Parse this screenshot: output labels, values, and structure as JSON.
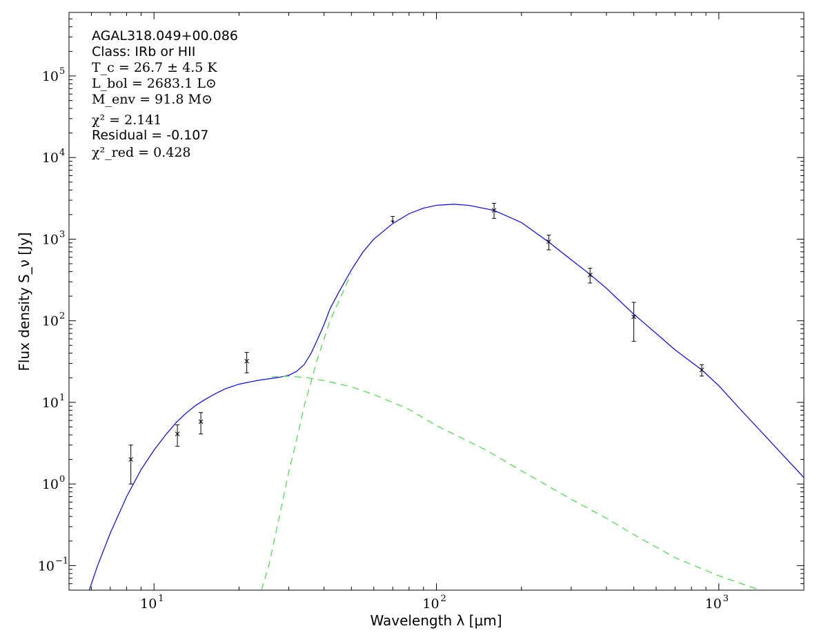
{
  "chart_data": {
    "type": "line",
    "xlabel": "Wavelength λ [μm]",
    "ylabel": "Flux density S_ν [Jy]",
    "xscale": "log",
    "yscale": "log",
    "xlim": [
      5,
      2000
    ],
    "ylim": [
      0.05,
      600000
    ],
    "x_ticks": [
      {
        "base": "10",
        "exp": "1",
        "value": 10
      },
      {
        "base": "10",
        "exp": "2",
        "value": 100
      },
      {
        "base": "10",
        "exp": "3",
        "value": 1000
      }
    ],
    "y_ticks": [
      {
        "base": "10",
        "exp": "−1",
        "value": 0.1
      },
      {
        "base": "10",
        "exp": "0",
        "value": 1
      },
      {
        "base": "10",
        "exp": "1",
        "value": 10
      },
      {
        "base": "10",
        "exp": "2",
        "value": 100
      },
      {
        "base": "10",
        "exp": "3",
        "value": 1000
      },
      {
        "base": "10",
        "exp": "4",
        "value": 10000
      },
      {
        "base": "10",
        "exp": "5",
        "value": 100000
      }
    ],
    "annotations": {
      "source": "AGAL318.049+00.086",
      "class": "Class: IRb or HII",
      "tc": "T_c = 26.7 ± 4.5 K",
      "lbol": "L_bol = 2683.1 L⊙",
      "menv": "M_env = 91.8 M⊙",
      "chi2": "χ² = 2.141",
      "residual": "Residual = -0.107",
      "chi2red": "χ²_red = 0.428"
    },
    "points": [
      {
        "x": 8.28,
        "y": 2.0,
        "ylo": 1.0,
        "yhi": 3.0
      },
      {
        "x": 12.1,
        "y": 4.1,
        "ylo": 2.9,
        "yhi": 5.3
      },
      {
        "x": 14.65,
        "y": 5.8,
        "ylo": 4.1,
        "yhi": 7.5
      },
      {
        "x": 21.3,
        "y": 32.0,
        "ylo": 23.0,
        "yhi": 41.0
      },
      {
        "x": 160,
        "y": 2250,
        "ylo": 1800,
        "yhi": 2750
      },
      {
        "x": 250,
        "y": 930,
        "ylo": 740,
        "yhi": 1120
      },
      {
        "x": 350,
        "y": 365,
        "ylo": 290,
        "yhi": 440
      },
      {
        "x": 500,
        "y": 112,
        "ylo": 56,
        "yhi": 168
      },
      {
        "x": 870,
        "y": 25,
        "ylo": 21,
        "yhi": 29
      }
    ],
    "upper_limits": [
      {
        "x": 70,
        "y": 1900
      }
    ],
    "series": [
      {
        "style": "solid",
        "color": "#0000ff",
        "points": [
          [
            5.9,
            0.05
          ],
          [
            6.3,
            0.098
          ],
          [
            7.0,
            0.25
          ],
          [
            8.0,
            0.7
          ],
          [
            9.0,
            1.5
          ],
          [
            10.0,
            2.6
          ],
          [
            11.0,
            4.0
          ],
          [
            12.0,
            5.7
          ],
          [
            13.0,
            7.4
          ],
          [
            14.0,
            9.1
          ],
          [
            15.0,
            10.6
          ],
          [
            16.5,
            12.8
          ],
          [
            18.0,
            14.8
          ],
          [
            20.0,
            16.7
          ],
          [
            22.0,
            17.9
          ],
          [
            24.0,
            18.9
          ],
          [
            26.0,
            19.6
          ],
          [
            28.0,
            20.4
          ],
          [
            30.0,
            21.5
          ],
          [
            32.0,
            24.0
          ],
          [
            34.0,
            29.0
          ],
          [
            36.0,
            40.0
          ],
          [
            38.0,
            60.0
          ],
          [
            40.0,
            90.0
          ],
          [
            42.0,
            140.0
          ],
          [
            45.0,
            220.0
          ],
          [
            50.0,
            420.0
          ],
          [
            55.0,
            700.0
          ],
          [
            60.0,
            1000.0
          ],
          [
            70.0,
            1550.0
          ],
          [
            80.0,
            2050.0
          ],
          [
            90.0,
            2400.0
          ],
          [
            100.0,
            2600.0
          ],
          [
            115.0,
            2680.0
          ],
          [
            130.0,
            2600.0
          ],
          [
            160.0,
            2250.0
          ],
          [
            200.0,
            1600.0
          ],
          [
            250.0,
            920.0
          ],
          [
            300.0,
            560.0
          ],
          [
            350.0,
            370.0
          ],
          [
            400.0,
            250.0
          ],
          [
            500.0,
            120.0
          ],
          [
            600.0,
            70.0
          ],
          [
            700.0,
            44.0
          ],
          [
            870.0,
            25.0
          ],
          [
            1000.0,
            16.0
          ],
          [
            1200.0,
            8.0
          ],
          [
            1500.0,
            3.5
          ],
          [
            2000.0,
            1.2
          ]
        ]
      },
      {
        "style": "dashed",
        "color": "#44dd44",
        "points": [
          [
            24.0,
            0.05
          ],
          [
            25.5,
            0.1
          ],
          [
            27.0,
            0.25
          ],
          [
            28.5,
            0.6
          ],
          [
            30.0,
            1.4
          ],
          [
            32.0,
            3.5
          ],
          [
            34.0,
            9.0
          ],
          [
            36.0,
            18.0
          ],
          [
            38.0,
            35.0
          ],
          [
            40.0,
            60.0
          ],
          [
            42.0,
            100.0
          ],
          [
            45.0,
            170.0
          ],
          [
            50.0,
            380.0
          ]
        ]
      },
      {
        "style": "dashed",
        "color": "#44dd44",
        "points": [
          [
            26.0,
            20.5
          ],
          [
            30.0,
            21.0
          ],
          [
            35.0,
            20.0
          ],
          [
            40.0,
            18.5
          ],
          [
            50.0,
            15.5
          ],
          [
            60.0,
            12.5
          ],
          [
            80.0,
            8.2
          ],
          [
            100.0,
            5.2
          ],
          [
            150.0,
            2.6
          ],
          [
            200.0,
            1.45
          ],
          [
            300.0,
            0.65
          ],
          [
            400.0,
            0.38
          ],
          [
            500.0,
            0.24
          ],
          [
            700.0,
            0.125
          ],
          [
            1000.0,
            0.075
          ],
          [
            1400.0,
            0.05
          ]
        ]
      }
    ]
  }
}
